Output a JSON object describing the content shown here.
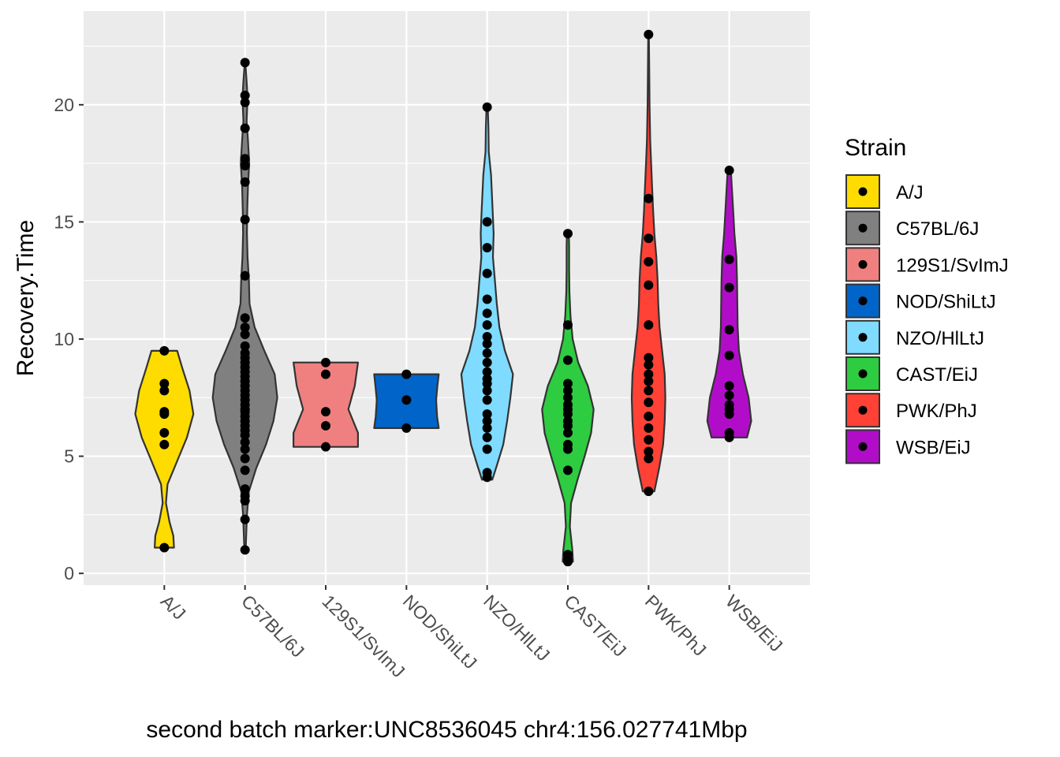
{
  "chart_data": {
    "type": "violin",
    "title": "",
    "xlabel": "second batch marker:UNC8536045 chr4:156.027741Mbp",
    "ylabel": "Recovery.Time",
    "ylim": [
      -0.5,
      24.0
    ],
    "yticks": [
      0,
      5,
      10,
      15,
      20
    ],
    "grid": true,
    "legend": {
      "title": "Strain",
      "position": "right"
    },
    "categories": [
      "A/J",
      "C57BL/6J",
      "129S1/SvImJ",
      "NOD/ShiLtJ",
      "NZO/HlLtJ",
      "CAST/EiJ",
      "PWK/PhJ",
      "WSB/EiJ"
    ],
    "series": [
      {
        "name": "A/J",
        "color": "#FFDC00",
        "points": [
          1.1,
          5.5,
          6.0,
          6.8,
          6.9,
          7.8,
          8.1,
          9.5
        ],
        "density": [
          [
            1.1,
            0.3
          ],
          [
            1.6,
            0.28
          ],
          [
            2.2,
            0.16
          ],
          [
            3.0,
            0.05
          ],
          [
            3.8,
            0.1
          ],
          [
            4.8,
            0.4
          ],
          [
            5.8,
            0.7
          ],
          [
            6.8,
            0.9
          ],
          [
            7.8,
            0.78
          ],
          [
            8.8,
            0.55
          ],
          [
            9.5,
            0.4
          ]
        ]
      },
      {
        "name": "C57BL/6J",
        "color": "#808080",
        "points": [
          1.0,
          2.3,
          3.1,
          3.3,
          3.6,
          4.4,
          4.9,
          5.3,
          5.6,
          5.9,
          6.1,
          6.3,
          6.5,
          6.7,
          6.9,
          7.0,
          7.2,
          7.4,
          7.6,
          7.8,
          8.0,
          8.2,
          8.4,
          8.6,
          8.8,
          9.0,
          9.2,
          9.4,
          9.7,
          10.2,
          10.5,
          10.9,
          12.7,
          15.1,
          16.7,
          17.4,
          17.7,
          19.0,
          20.1,
          20.4,
          21.8
        ],
        "density": [
          [
            1.0,
            0.02
          ],
          [
            2.5,
            0.06
          ],
          [
            3.5,
            0.12
          ],
          [
            4.5,
            0.35
          ],
          [
            5.5,
            0.65
          ],
          [
            6.5,
            0.88
          ],
          [
            7.5,
            1.0
          ],
          [
            8.5,
            0.92
          ],
          [
            9.5,
            0.6
          ],
          [
            10.5,
            0.3
          ],
          [
            11.5,
            0.14
          ],
          [
            12.5,
            0.12
          ],
          [
            13.5,
            0.08
          ],
          [
            14.5,
            0.06
          ],
          [
            15.5,
            0.07
          ],
          [
            16.5,
            0.09
          ],
          [
            17.5,
            0.13
          ],
          [
            18.5,
            0.09
          ],
          [
            19.3,
            0.05
          ],
          [
            20.3,
            0.08
          ],
          [
            21.0,
            0.05
          ],
          [
            21.8,
            0.01
          ]
        ]
      },
      {
        "name": "129S1/SvImJ",
        "color": "#F08080",
        "points": [
          5.4,
          6.3,
          6.9,
          8.5,
          9.0
        ],
        "density": [
          [
            5.4,
            1.0
          ],
          [
            6.0,
            1.0
          ],
          [
            7.0,
            0.7
          ],
          [
            8.0,
            0.9
          ],
          [
            9.0,
            1.0
          ]
        ]
      },
      {
        "name": "NOD/ShiLtJ",
        "color": "#0064C9",
        "points": [
          6.2,
          7.4,
          8.5
        ],
        "density": [
          [
            6.2,
            1.0
          ],
          [
            6.7,
            0.95
          ],
          [
            7.4,
            0.92
          ],
          [
            8.0,
            0.96
          ],
          [
            8.5,
            1.0
          ]
        ]
      },
      {
        "name": "NZO/HlLtJ",
        "color": "#7FDBFF",
        "points": [
          4.1,
          4.3,
          5.3,
          5.8,
          6.2,
          6.5,
          6.8,
          7.4,
          7.8,
          8.1,
          8.3,
          8.6,
          9.0,
          9.4,
          9.8,
          10.1,
          10.6,
          11.1,
          11.7,
          12.8,
          13.9,
          15.0,
          19.9
        ],
        "density": [
          [
            4.0,
            0.16
          ],
          [
            4.6,
            0.3
          ],
          [
            5.5,
            0.5
          ],
          [
            6.5,
            0.62
          ],
          [
            7.5,
            0.72
          ],
          [
            8.5,
            0.8
          ],
          [
            9.5,
            0.55
          ],
          [
            10.5,
            0.38
          ],
          [
            11.5,
            0.3
          ],
          [
            12.5,
            0.24
          ],
          [
            13.5,
            0.18
          ],
          [
            14.5,
            0.2
          ],
          [
            15.5,
            0.17
          ],
          [
            17.0,
            0.12
          ],
          [
            18.0,
            0.05
          ],
          [
            19.0,
            0.04
          ],
          [
            19.9,
            0.02
          ]
        ]
      },
      {
        "name": "CAST/EiJ",
        "color": "#2ECC40",
        "points": [
          0.5,
          0.6,
          0.8,
          4.4,
          5.3,
          5.5,
          6.0,
          6.3,
          6.5,
          6.8,
          7.0,
          7.2,
          7.5,
          7.8,
          8.1,
          9.1,
          10.6,
          14.5
        ],
        "density": [
          [
            0.5,
            0.16
          ],
          [
            1.0,
            0.14
          ],
          [
            2.0,
            0.06
          ],
          [
            3.0,
            0.1
          ],
          [
            4.0,
            0.3
          ],
          [
            5.0,
            0.52
          ],
          [
            6.0,
            0.72
          ],
          [
            7.0,
            0.8
          ],
          [
            8.0,
            0.62
          ],
          [
            9.0,
            0.32
          ],
          [
            10.0,
            0.15
          ],
          [
            11.0,
            0.08
          ],
          [
            12.0,
            0.05
          ],
          [
            13.0,
            0.04
          ],
          [
            14.0,
            0.04
          ],
          [
            14.5,
            0.03
          ]
        ]
      },
      {
        "name": "PWK/PhJ",
        "color": "#FF4136",
        "points": [
          3.5,
          4.9,
          5.2,
          5.7,
          6.2,
          6.7,
          7.3,
          7.8,
          8.2,
          8.5,
          8.9,
          9.2,
          10.6,
          12.3,
          13.3,
          14.3,
          16.0,
          23.0
        ],
        "density": [
          [
            3.5,
            0.18
          ],
          [
            4.5,
            0.33
          ],
          [
            5.5,
            0.45
          ],
          [
            6.5,
            0.5
          ],
          [
            7.5,
            0.52
          ],
          [
            8.5,
            0.5
          ],
          [
            9.5,
            0.42
          ],
          [
            10.5,
            0.34
          ],
          [
            11.5,
            0.3
          ],
          [
            12.5,
            0.28
          ],
          [
            13.5,
            0.24
          ],
          [
            14.5,
            0.18
          ],
          [
            15.5,
            0.14
          ],
          [
            16.5,
            0.11
          ],
          [
            17.5,
            0.08
          ],
          [
            18.5,
            0.05
          ],
          [
            20.0,
            0.03
          ],
          [
            21.5,
            0.02
          ],
          [
            23.0,
            0.01
          ]
        ]
      },
      {
        "name": "WSB/EiJ",
        "color": "#B10DC9",
        "points": [
          5.8,
          6.0,
          6.8,
          7.0,
          7.2,
          7.6,
          8.0,
          9.3,
          10.4,
          12.2,
          13.4,
          17.2
        ],
        "density": [
          [
            5.8,
            0.55
          ],
          [
            6.5,
            0.68
          ],
          [
            7.5,
            0.6
          ],
          [
            8.5,
            0.42
          ],
          [
            9.5,
            0.3
          ],
          [
            10.5,
            0.26
          ],
          [
            11.5,
            0.25
          ],
          [
            12.5,
            0.24
          ],
          [
            13.5,
            0.22
          ],
          [
            14.5,
            0.16
          ],
          [
            15.5,
            0.12
          ],
          [
            16.5,
            0.08
          ],
          [
            17.2,
            0.05
          ]
        ]
      }
    ]
  }
}
